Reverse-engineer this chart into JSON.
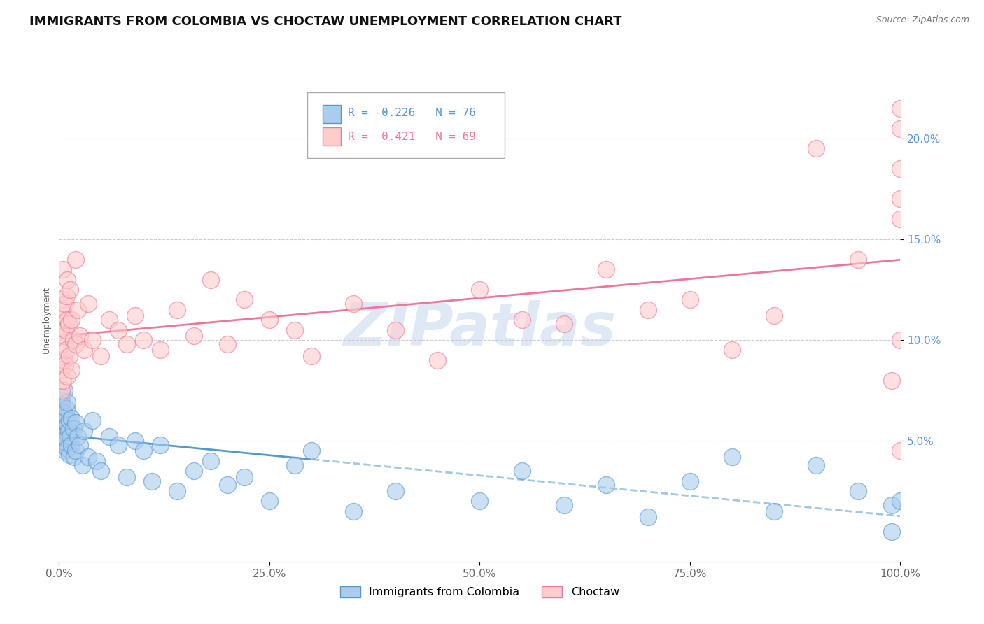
{
  "title": "IMMIGRANTS FROM COLOMBIA VS CHOCTAW UNEMPLOYMENT CORRELATION CHART",
  "source": "Source: ZipAtlas.com",
  "ylabel": "Unemployment",
  "watermark": "ZIPatlas",
  "series": [
    {
      "name": "Immigrants from Colombia",
      "R": -0.226,
      "N": 76,
      "color_face": "#aaccee",
      "color_edge": "#5599cc",
      "trend_color": "#5599cc",
      "trend_style_solid": "-",
      "trend_style_dash": "--",
      "x": [
        0.1,
        0.15,
        0.2,
        0.2,
        0.25,
        0.3,
        0.3,
        0.35,
        0.4,
        0.4,
        0.45,
        0.5,
        0.5,
        0.55,
        0.6,
        0.6,
        0.65,
        0.7,
        0.7,
        0.75,
        0.8,
        0.8,
        0.85,
        0.9,
        0.9,
        1.0,
        1.0,
        1.0,
        1.1,
        1.2,
        1.2,
        1.3,
        1.5,
        1.5,
        1.7,
        1.8,
        2.0,
        2.0,
        2.2,
        2.5,
        2.8,
        3.0,
        3.5,
        4.0,
        4.5,
        5.0,
        6.0,
        7.0,
        8.0,
        9.0,
        10.0,
        11.0,
        12.0,
        14.0,
        16.0,
        18.0,
        20.0,
        22.0,
        25.0,
        28.0,
        30.0,
        35.0,
        40.0,
        50.0,
        55.0,
        60.0,
        65.0,
        70.0,
        75.0,
        80.0,
        85.0,
        90.0,
        95.0,
        99.0,
        99.0,
        100.0
      ],
      "y": [
        6.5,
        6.2,
        5.8,
        7.0,
        6.0,
        5.5,
        6.8,
        5.2,
        6.3,
        7.2,
        5.0,
        6.1,
        4.8,
        5.9,
        6.4,
        7.5,
        5.3,
        6.0,
        4.5,
        5.7,
        6.2,
        4.9,
        5.4,
        6.6,
        5.1,
        5.8,
        4.6,
        6.9,
        5.5,
        6.0,
        4.3,
        5.2,
        6.1,
        4.8,
        5.6,
        4.2,
        5.9,
        4.5,
        5.2,
        4.8,
        3.8,
        5.5,
        4.2,
        6.0,
        4.0,
        3.5,
        5.2,
        4.8,
        3.2,
        5.0,
        4.5,
        3.0,
        4.8,
        2.5,
        3.5,
        4.0,
        2.8,
        3.2,
        2.0,
        3.8,
        4.5,
        1.5,
        2.5,
        2.0,
        3.5,
        1.8,
        2.8,
        1.2,
        3.0,
        4.2,
        1.5,
        3.8,
        2.5,
        1.8,
        0.5,
        2.0
      ]
    },
    {
      "name": "Choctaw",
      "R": 0.421,
      "N": 69,
      "color_face": "#ffcccc",
      "color_edge": "#ee7799",
      "trend_color": "#ee7799",
      "trend_style": "-",
      "x": [
        0.1,
        0.15,
        0.2,
        0.25,
        0.3,
        0.35,
        0.4,
        0.45,
        0.5,
        0.5,
        0.6,
        0.65,
        0.7,
        0.75,
        0.8,
        0.85,
        0.9,
        0.95,
        1.0,
        1.0,
        1.1,
        1.2,
        1.3,
        1.5,
        1.5,
        1.7,
        2.0,
        2.0,
        2.2,
        2.5,
        3.0,
        3.5,
        4.0,
        5.0,
        6.0,
        7.0,
        8.0,
        9.0,
        10.0,
        12.0,
        14.0,
        16.0,
        18.0,
        20.0,
        22.0,
        25.0,
        28.0,
        30.0,
        35.0,
        40.0,
        45.0,
        50.0,
        55.0,
        60.0,
        65.0,
        70.0,
        75.0,
        80.0,
        85.0,
        90.0,
        95.0,
        99.0,
        100.0,
        100.0,
        100.0,
        100.0,
        100.0,
        100.0,
        100.0
      ],
      "y": [
        9.0,
        11.0,
        8.5,
        10.5,
        7.5,
        12.0,
        9.8,
        11.5,
        8.0,
        13.5,
        10.2,
        9.0,
        11.8,
        8.8,
        10.5,
        12.2,
        9.5,
        11.0,
        8.2,
        13.0,
        10.8,
        9.2,
        12.5,
        11.0,
        8.5,
        10.0,
        9.8,
        14.0,
        11.5,
        10.2,
        9.5,
        11.8,
        10.0,
        9.2,
        11.0,
        10.5,
        9.8,
        11.2,
        10.0,
        9.5,
        11.5,
        10.2,
        13.0,
        9.8,
        12.0,
        11.0,
        10.5,
        9.2,
        11.8,
        10.5,
        9.0,
        12.5,
        11.0,
        10.8,
        13.5,
        11.5,
        12.0,
        9.5,
        11.2,
        19.5,
        14.0,
        8.0,
        17.0,
        20.5,
        18.5,
        21.5,
        4.5,
        16.0,
        10.0
      ]
    }
  ],
  "xlim": [
    0,
    100
  ],
  "ylim": [
    -1,
    23
  ],
  "ytick_vals": [
    5.0,
    10.0,
    15.0,
    20.0
  ],
  "ytick_labels": [
    "5.0%",
    "10.0%",
    "15.0%",
    "20.0%"
  ],
  "xtick_vals": [
    0,
    25,
    50,
    75,
    100
  ],
  "xtick_labels": [
    "0.0%",
    "25.0%",
    "50.0%",
    "75.0%",
    "100.0%"
  ],
  "grid_color": "#cccccc",
  "background_color": "#ffffff",
  "title_fontsize": 13,
  "ylabel_fontsize": 9,
  "tick_fontsize": 11,
  "scatter_size": 300,
  "scatter_alpha": 0.6,
  "trend_linewidth": 2.0,
  "trend_solid_end_x": 30
}
